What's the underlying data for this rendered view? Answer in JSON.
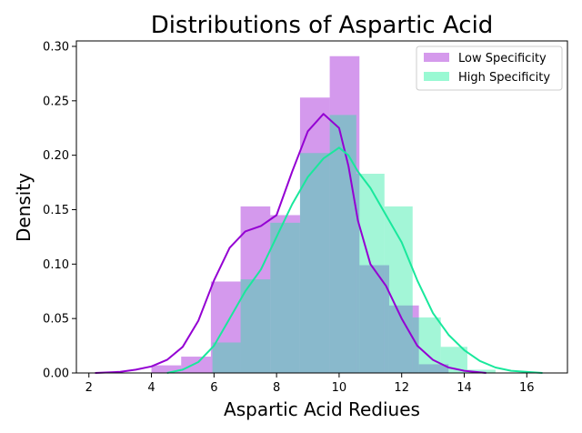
{
  "chart_data": {
    "type": "bar",
    "title": "Distributions of Aspartic Acid",
    "xlabel": "Aspartic Acid Rediues",
    "ylabel": "Density",
    "xlim": [
      1.6,
      17.3
    ],
    "ylim": [
      0,
      0.305
    ],
    "xticks": [
      2,
      4,
      6,
      8,
      10,
      12,
      14,
      16
    ],
    "yticks": [
      0.0,
      0.05,
      0.1,
      0.15,
      0.2,
      0.25,
      0.3
    ],
    "ytick_labels": [
      "0.00",
      "0.05",
      "0.10",
      "0.15",
      "0.20",
      "0.25",
      "0.30"
    ],
    "legend": "top-right",
    "series": [
      {
        "name": "Low Specificity",
        "color": "#9400d3",
        "fill_color": "#d59aec",
        "bins": [
          {
            "x0": 4.0,
            "x1": 4.95,
            "y": 0.007
          },
          {
            "x0": 4.95,
            "x1": 5.9,
            "y": 0.015
          },
          {
            "x0": 5.9,
            "x1": 6.85,
            "y": 0.084
          },
          {
            "x0": 6.85,
            "x1": 7.8,
            "y": 0.153
          },
          {
            "x0": 7.8,
            "x1": 8.75,
            "y": 0.145
          },
          {
            "x0": 8.75,
            "x1": 9.7,
            "y": 0.253
          },
          {
            "x0": 9.7,
            "x1": 10.65,
            "y": 0.291
          },
          {
            "x0": 10.65,
            "x1": 11.6,
            "y": 0.099
          },
          {
            "x0": 11.6,
            "x1": 12.55,
            "y": 0.062
          },
          {
            "x0": 12.55,
            "x1": 13.5,
            "y": 0.008
          }
        ],
        "kde": [
          [
            2.2,
            0.0
          ],
          [
            3.0,
            0.001
          ],
          [
            3.5,
            0.003
          ],
          [
            4.0,
            0.006
          ],
          [
            4.5,
            0.012
          ],
          [
            5.0,
            0.024
          ],
          [
            5.5,
            0.048
          ],
          [
            6.0,
            0.085
          ],
          [
            6.5,
            0.115
          ],
          [
            7.0,
            0.13
          ],
          [
            7.5,
            0.135
          ],
          [
            8.0,
            0.145
          ],
          [
            8.5,
            0.185
          ],
          [
            9.0,
            0.222
          ],
          [
            9.5,
            0.238
          ],
          [
            10.0,
            0.225
          ],
          [
            10.3,
            0.19
          ],
          [
            10.6,
            0.14
          ],
          [
            11.0,
            0.1
          ],
          [
            11.5,
            0.08
          ],
          [
            12.0,
            0.05
          ],
          [
            12.5,
            0.025
          ],
          [
            13.0,
            0.012
          ],
          [
            13.5,
            0.005
          ],
          [
            14.0,
            0.002
          ],
          [
            14.7,
            0.0
          ]
        ]
      },
      {
        "name": "High Specificity",
        "color": "#19e89c",
        "fill_color": "#99f9d3",
        "bins": [
          {
            "x0": 5.95,
            "x1": 6.85,
            "y": 0.028
          },
          {
            "x0": 6.85,
            "x1": 7.8,
            "y": 0.086
          },
          {
            "x0": 7.8,
            "x1": 8.75,
            "y": 0.138
          },
          {
            "x0": 8.75,
            "x1": 9.7,
            "y": 0.202
          },
          {
            "x0": 9.7,
            "x1": 10.55,
            "y": 0.237
          },
          {
            "x0": 10.55,
            "x1": 11.45,
            "y": 0.183
          },
          {
            "x0": 11.45,
            "x1": 12.35,
            "y": 0.153
          },
          {
            "x0": 12.35,
            "x1": 13.25,
            "y": 0.051
          },
          {
            "x0": 13.25,
            "x1": 14.1,
            "y": 0.024
          },
          {
            "x0": 14.1,
            "x1": 15.0,
            "y": 0.003
          }
        ],
        "kde": [
          [
            4.5,
            0.0
          ],
          [
            5.0,
            0.003
          ],
          [
            5.5,
            0.01
          ],
          [
            6.0,
            0.025
          ],
          [
            6.5,
            0.05
          ],
          [
            7.0,
            0.075
          ],
          [
            7.5,
            0.095
          ],
          [
            8.0,
            0.125
          ],
          [
            8.5,
            0.155
          ],
          [
            9.0,
            0.18
          ],
          [
            9.5,
            0.197
          ],
          [
            10.0,
            0.207
          ],
          [
            10.3,
            0.2
          ],
          [
            10.6,
            0.185
          ],
          [
            11.0,
            0.17
          ],
          [
            11.5,
            0.145
          ],
          [
            12.0,
            0.12
          ],
          [
            12.5,
            0.085
          ],
          [
            13.0,
            0.055
          ],
          [
            13.5,
            0.035
          ],
          [
            14.0,
            0.021
          ],
          [
            14.5,
            0.011
          ],
          [
            15.0,
            0.005
          ],
          [
            15.5,
            0.002
          ],
          [
            16.5,
            0.0
          ]
        ]
      }
    ]
  }
}
